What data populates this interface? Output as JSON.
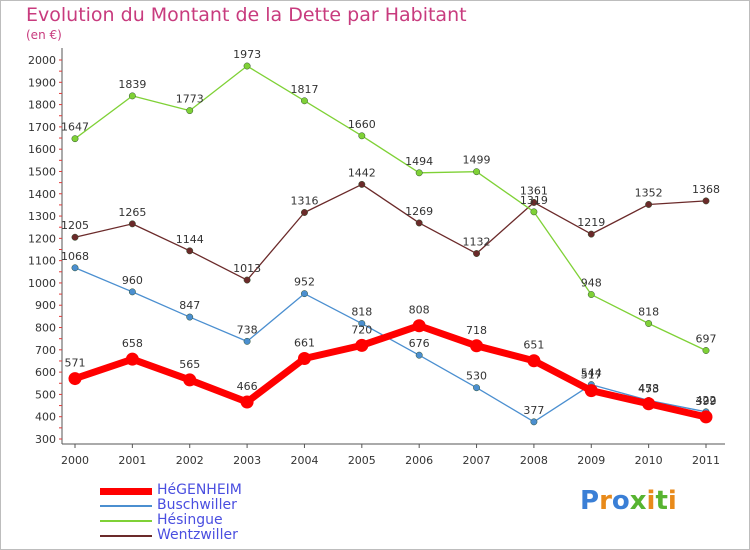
{
  "title": "Evolution du Montant de la Dette par Habitant",
  "subtitle": "(en €)",
  "logo": {
    "text": "Proxiti",
    "colors": [
      "#3a7fd6",
      "#e88a1a",
      "#3a7fd6",
      "#58b431",
      "#e88a1a",
      "#58b431",
      "#e88a1a"
    ]
  },
  "chart_data": {
    "type": "line",
    "title": "Evolution du Montant de la Dette par Habitant",
    "subtitle": "(en €)",
    "x": [
      "2000",
      "2001",
      "2002",
      "2003",
      "2004",
      "2005",
      "2006",
      "2007",
      "2008",
      "2009",
      "2010",
      "2011"
    ],
    "ylim": [
      300,
      2000
    ],
    "yticks": [
      300,
      400,
      500,
      600,
      700,
      800,
      900,
      1000,
      1100,
      1200,
      1300,
      1400,
      1500,
      1600,
      1700,
      1800,
      1900,
      2000
    ],
    "grid": false,
    "legend_position": "bottom-left",
    "series": [
      {
        "name": "HéGENHEIM",
        "color": "#ff0000",
        "values": [
          571,
          658,
          565,
          466,
          661,
          720,
          808,
          718,
          651,
          517,
          458,
          399
        ]
      },
      {
        "name": "Buschwiller",
        "color": "#4b8fd0",
        "values": [
          1068,
          960,
          847,
          738,
          952,
          818,
          676,
          530,
          377,
          544,
          473,
          422
        ]
      },
      {
        "name": "Hésingue",
        "color": "#7fd136",
        "values": [
          1647,
          1839,
          1773,
          1973,
          1817,
          1660,
          1494,
          1499,
          1319,
          948,
          818,
          697
        ]
      },
      {
        "name": "Wentzwiller",
        "color": "#6b2a2a",
        "values": [
          1205,
          1265,
          1144,
          1013,
          1316,
          1442,
          1269,
          1132,
          1361,
          1219,
          1352,
          1368
        ]
      }
    ]
  }
}
